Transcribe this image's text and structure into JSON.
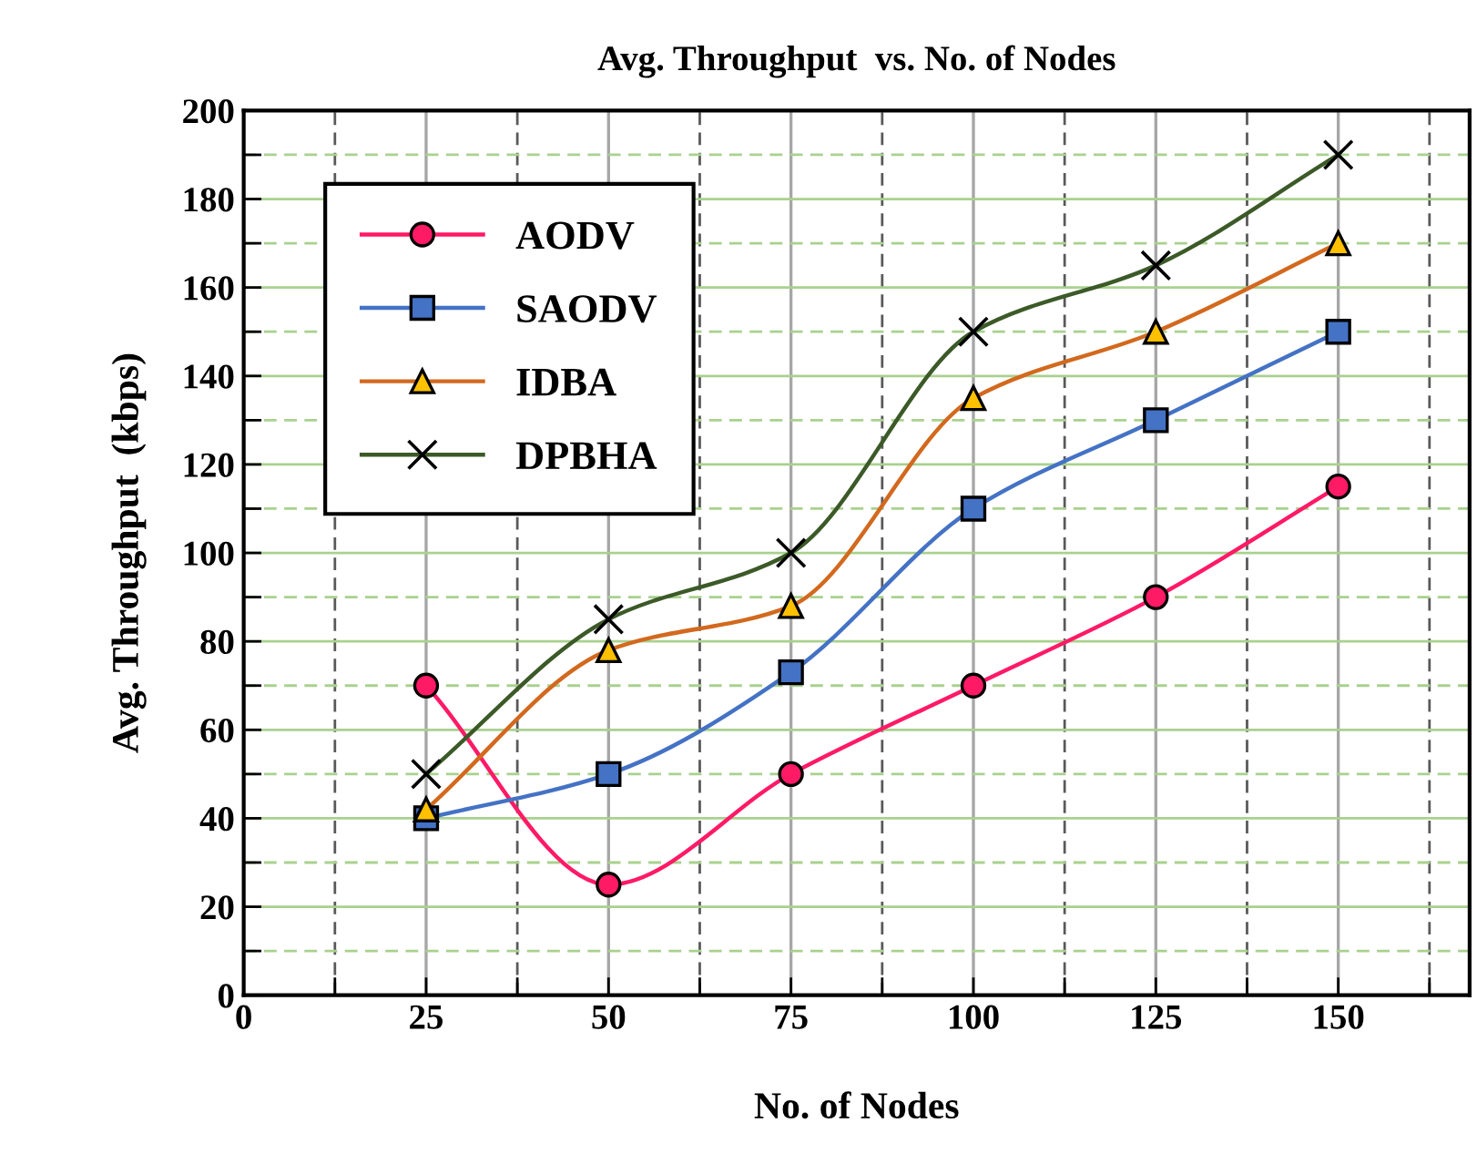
{
  "chart_data": {
    "type": "line",
    "title": "Avg. Throughput  vs. No. of Nodes",
    "xlabel": "No. of Nodes",
    "ylabel": "Avg. Throughput  (kbps)",
    "x": [
      25,
      50,
      75,
      100,
      125,
      150
    ],
    "series": [
      {
        "name": "AODV",
        "color": "#ff1a66",
        "marker": "circle",
        "values": [
          70,
          25,
          50,
          70,
          90,
          115
        ]
      },
      {
        "name": "SAODV",
        "color": "#4472c4",
        "marker": "square",
        "values": [
          40,
          50,
          73,
          110,
          130,
          150
        ]
      },
      {
        "name": "IDBA",
        "color": "#d2691e",
        "marker": "triangle",
        "values": [
          42,
          78,
          88,
          135,
          150,
          170
        ]
      },
      {
        "name": "DPBHA",
        "color": "#3c5a28",
        "marker": "cross",
        "values": [
          50,
          85,
          100,
          150,
          165,
          190
        ]
      }
    ],
    "xlim": [
      0,
      168
    ],
    "xticks": [
      0,
      {
        "value": 12.5,
        "label": null
      },
      25,
      {
        "value": 37.5,
        "label": null
      },
      50,
      {
        "value": 62.5,
        "label": null
      },
      75,
      {
        "value": 87.5,
        "label": null
      },
      100,
      {
        "value": 112.5,
        "label": null
      },
      125,
      {
        "value": 137.5,
        "label": null
      },
      150,
      {
        "value": 162.5,
        "label": null
      }
    ],
    "ylim": [
      0,
      200
    ],
    "yticks": [
      0,
      {
        "value": 10,
        "label": null
      },
      20,
      {
        "value": 30,
        "label": null
      },
      40,
      {
        "value": 50,
        "label": null
      },
      60,
      {
        "value": 70,
        "label": null
      },
      80,
      {
        "value": 90,
        "label": null
      },
      100,
      {
        "value": 110,
        "label": null
      },
      120,
      {
        "value": 130,
        "label": null
      },
      140,
      {
        "value": 150,
        "label": null
      },
      160,
      {
        "value": 170,
        "label": null
      },
      180,
      {
        "value": 190,
        "label": null
      },
      200
    ],
    "grid": true,
    "legend": "top left"
  }
}
